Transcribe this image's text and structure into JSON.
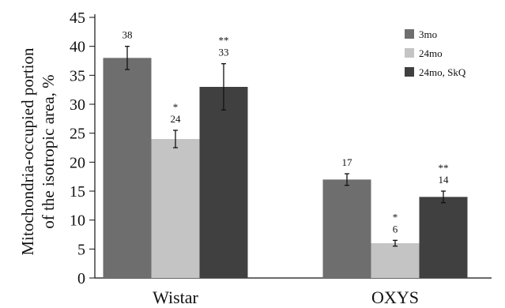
{
  "chart_data": {
    "type": "bar",
    "categories": [
      "Wistar",
      "OXYS"
    ],
    "ylabel_line1": "Mitochondria-occupied portion",
    "ylabel_line2": "of the isotropic area, %",
    "ylim": [
      0,
      45
    ],
    "yticks": [
      0,
      5,
      10,
      15,
      20,
      25,
      30,
      35,
      40,
      45
    ],
    "grid": false,
    "legend_position": "top-right",
    "series": [
      {
        "name": "3mo",
        "color": "#6e6e6e",
        "values": [
          38,
          17
        ],
        "errors": [
          2,
          1
        ],
        "labels": [
          "38",
          "17"
        ],
        "significance": [
          "",
          ""
        ]
      },
      {
        "name": "24mo",
        "color": "#c4c4c4",
        "values": [
          24,
          6
        ],
        "errors": [
          1.5,
          0.5
        ],
        "labels": [
          "24",
          "6"
        ],
        "significance": [
          "*",
          "*"
        ]
      },
      {
        "name": "24mo, SkQ",
        "color": "#404040",
        "values": [
          33,
          14
        ],
        "errors": [
          4,
          1
        ],
        "labels": [
          "33",
          "14"
        ],
        "significance": [
          "**",
          "**"
        ]
      }
    ]
  }
}
